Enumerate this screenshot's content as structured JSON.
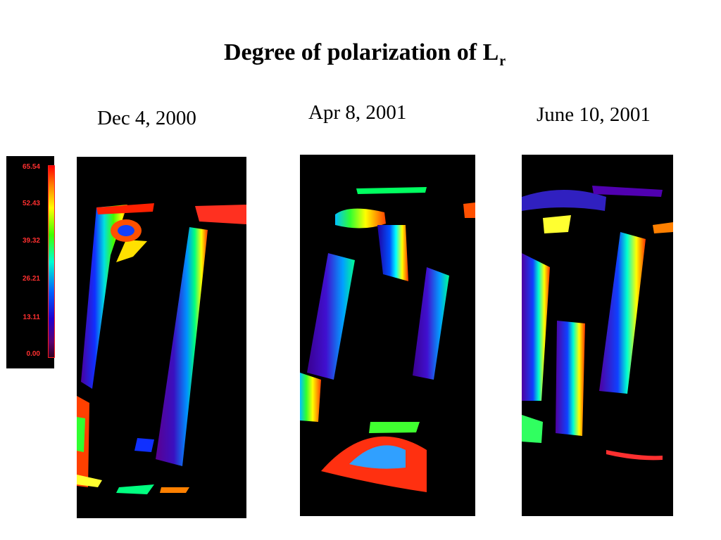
{
  "title": {
    "main": "Degree of polarization of L",
    "subscript": "r"
  },
  "dates": [
    "Dec 4, 2000",
    "Apr 8, 2001",
    "June 10, 2001"
  ],
  "colorbar": {
    "ticks": [
      "65.54",
      "52.43",
      "39.32",
      "26.21",
      "13.11",
      "0.00"
    ],
    "tick_color": "#ff3030",
    "colormap": "rainbow"
  },
  "colors": {
    "background": "#ffffff",
    "image_background": "#000000"
  }
}
